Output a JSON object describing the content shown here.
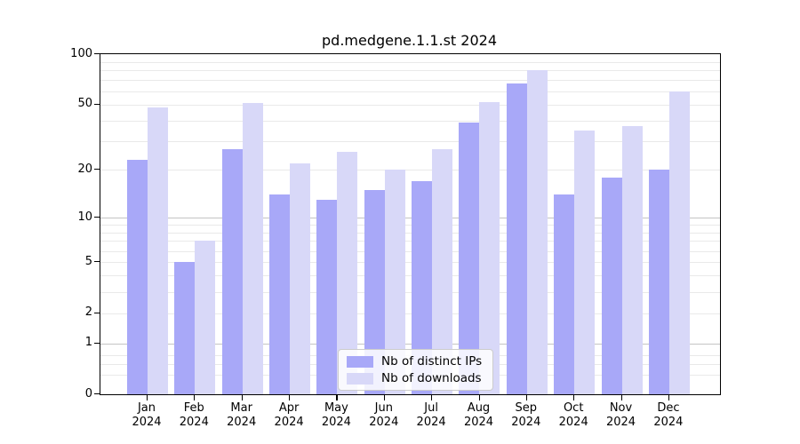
{
  "chart_data": {
    "type": "bar",
    "title": "pd.medgene.1.1.st 2024",
    "categories": [
      "Jan 2024",
      "Feb 2024",
      "Mar 2024",
      "Apr 2024",
      "May 2024",
      "Jun 2024",
      "Jul 2024",
      "Aug 2024",
      "Sep 2024",
      "Oct 2024",
      "Nov 2024",
      "Dec 2024"
    ],
    "series": [
      {
        "name": "Nb of distinct IPs",
        "color": "#a8a8f8",
        "values": [
          23,
          5,
          27,
          14,
          13,
          15,
          17,
          39,
          67,
          14,
          18,
          20
        ]
      },
      {
        "name": "Nb of downloads",
        "color": "#d8d8f8",
        "values": [
          48,
          7,
          51,
          22,
          26,
          20,
          27,
          52,
          80,
          35,
          37,
          60
        ]
      }
    ],
    "xlabel": "",
    "ylabel": "",
    "ylim": [
      0,
      100
    ],
    "y_scale": "log10(1+value)",
    "y_ticks": [
      100,
      50,
      20,
      10,
      5,
      2,
      1,
      0
    ],
    "y_tick_labels": [
      "100",
      "50",
      "20",
      "10",
      "5",
      "2",
      "1",
      "0"
    ],
    "grid": {
      "major_values": [
        1,
        10
      ],
      "minor_values": [
        0.3,
        0.5,
        0.7,
        2,
        3,
        4,
        5,
        6,
        7,
        8,
        9,
        20,
        30,
        40,
        50,
        60,
        70,
        80,
        90
      ]
    },
    "legend": {
      "position": "bottom-center",
      "entries": [
        "Nb of distinct IPs",
        "Nb of downloads"
      ]
    }
  }
}
